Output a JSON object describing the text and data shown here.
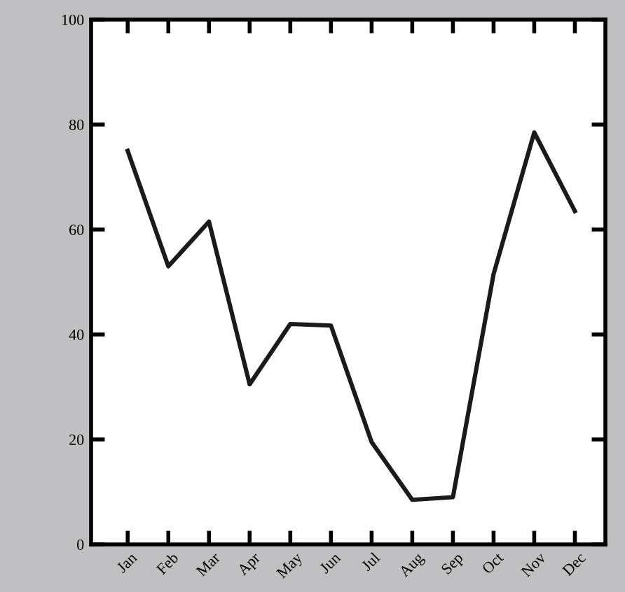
{
  "chart_data": {
    "type": "line",
    "categories": [
      "Jan",
      "Feb",
      "Mar",
      "Apr",
      "May",
      "Jun",
      "Jul",
      "Aug",
      "Sep",
      "Oct",
      "Nov",
      "Dec"
    ],
    "series": [
      {
        "color": "#1a1a1a",
        "values": [
          75,
          53,
          61.5,
          30.5,
          42,
          41.7,
          19.5,
          8.5,
          9,
          51.5,
          78.5,
          63.5
        ]
      }
    ],
    "ylim": [
      0,
      100
    ],
    "yticks": [
      0,
      20,
      40,
      60,
      80,
      100
    ],
    "grid": false,
    "legend": false,
    "marker": "none",
    "line_style": "solid"
  }
}
